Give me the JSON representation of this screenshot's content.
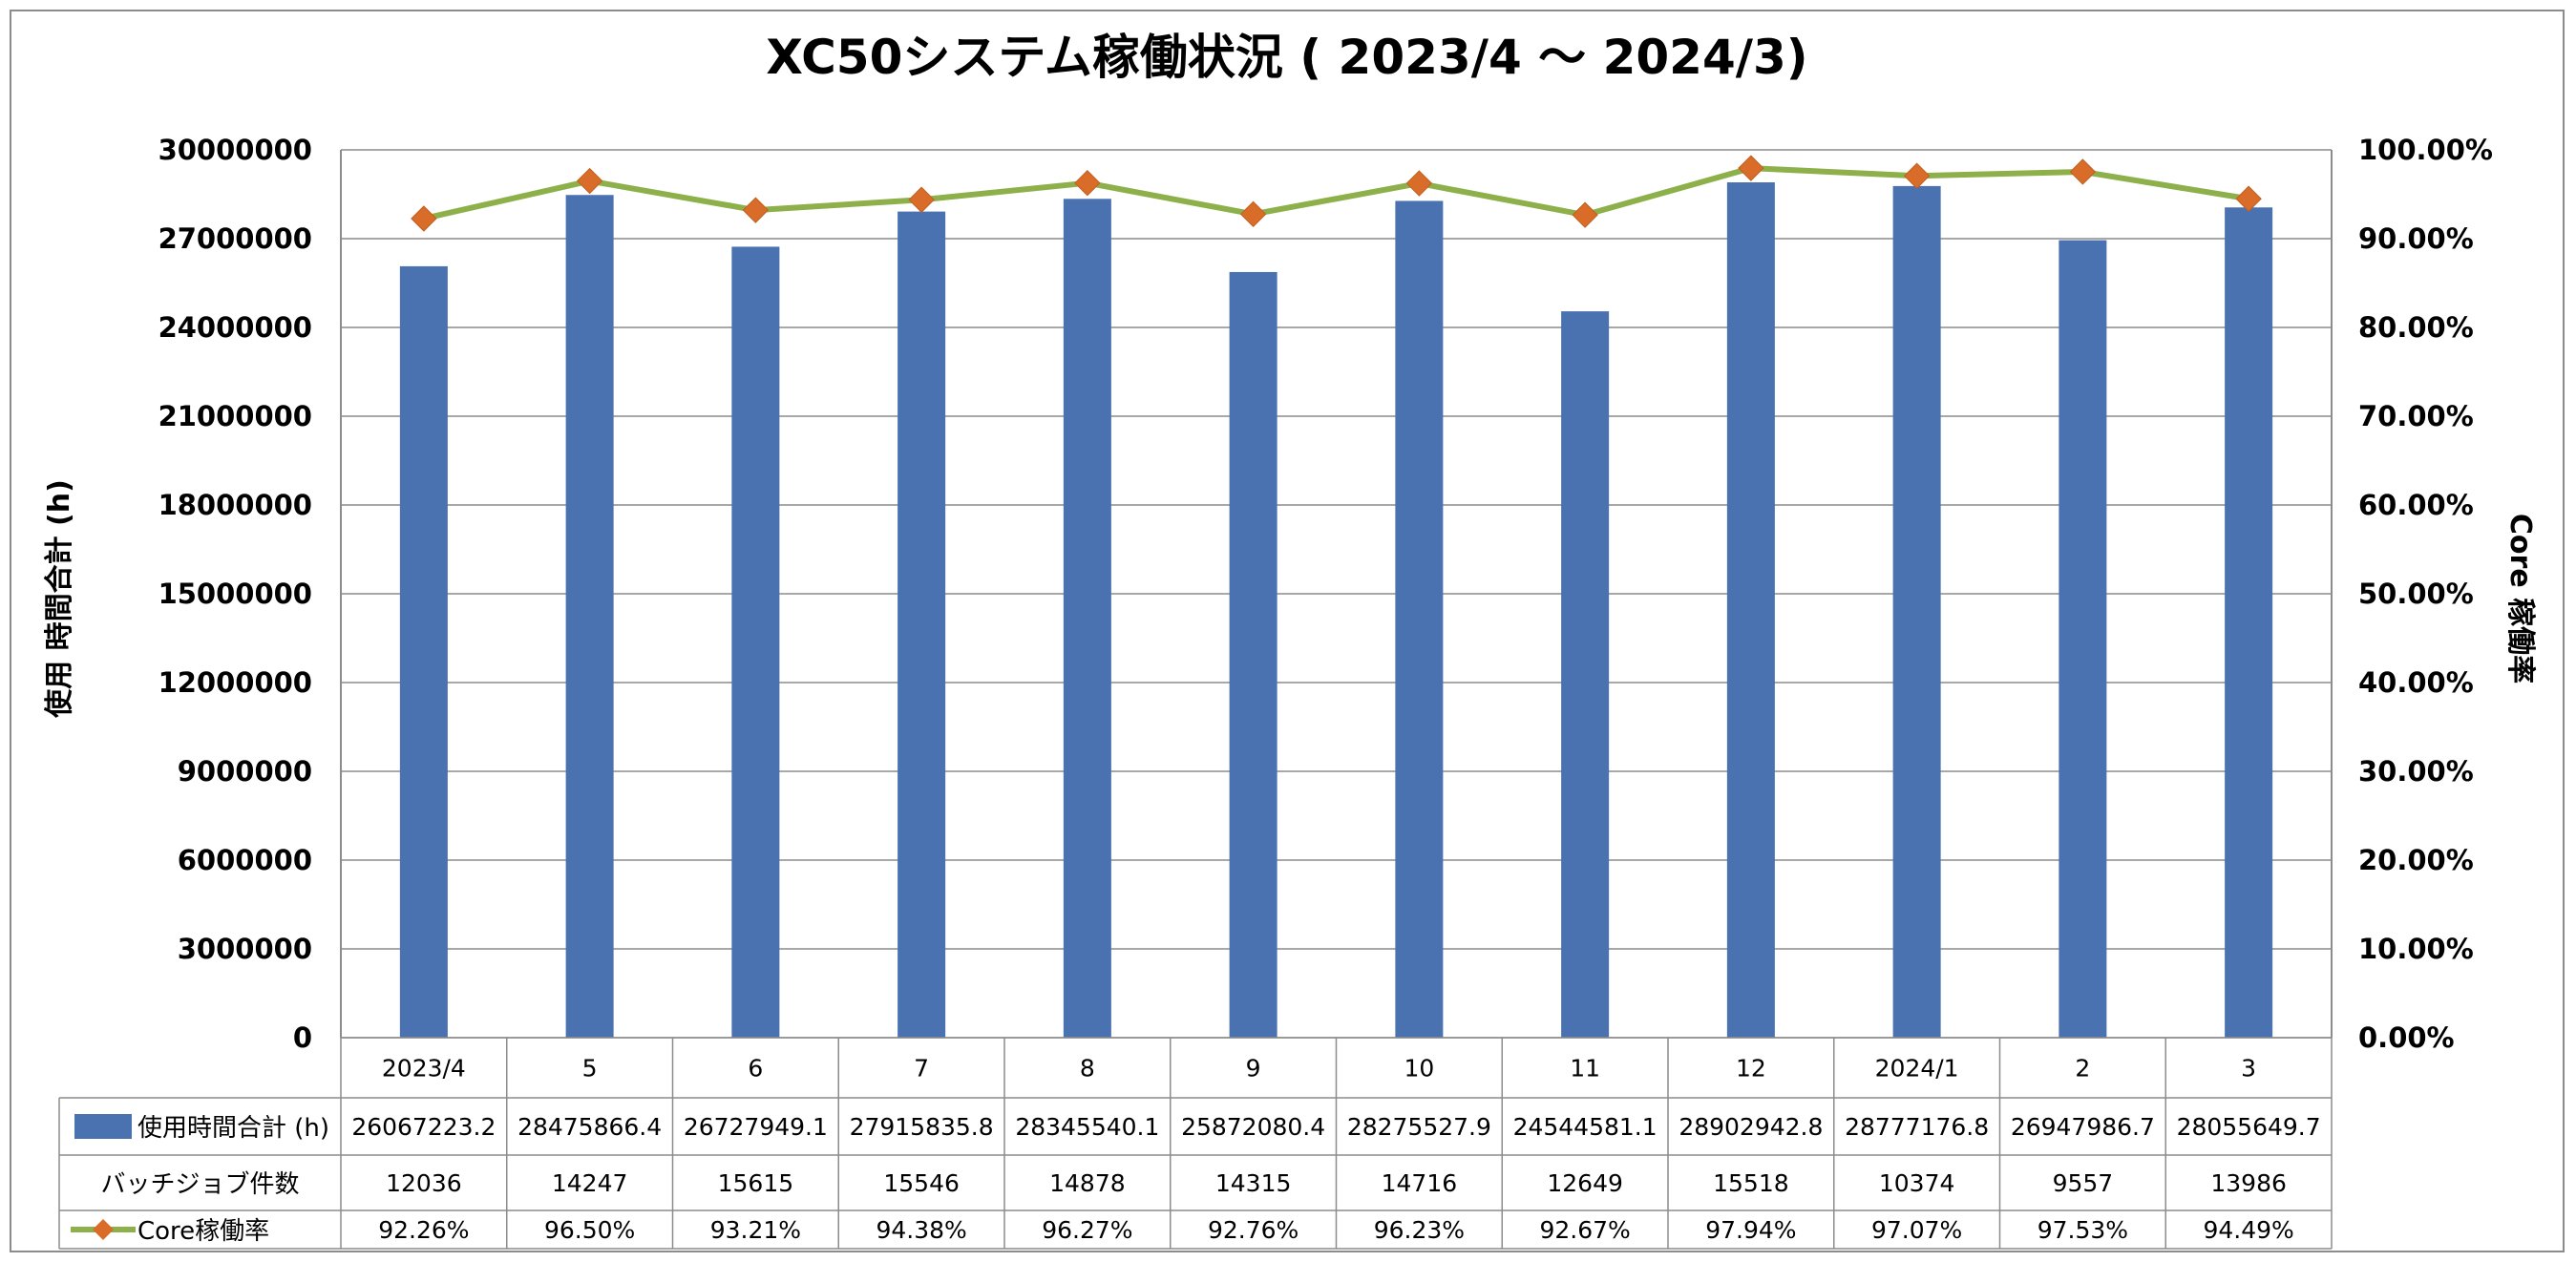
{
  "chart_data": {
    "type": "bar",
    "title": "XC50システム稼働状況 ( 2023/4 ～ 2024/3)",
    "categories": [
      "2023/4",
      "5",
      "6",
      "7",
      "8",
      "9",
      "10",
      "11",
      "12",
      "2024/1",
      "2",
      "3"
    ],
    "ylabel_left": "使用 時間合計 (h)",
    "ylabel_right": "Core 稼働率",
    "ylim_left": [
      0,
      30000000
    ],
    "yticks_left": [
      "0",
      "3000000",
      "6000000",
      "9000000",
      "12000000",
      "15000000",
      "18000000",
      "21000000",
      "24000000",
      "27000000",
      "30000000"
    ],
    "ylim_right": [
      0,
      100
    ],
    "yticks_right": [
      "0.00%",
      "10.00%",
      "20.00%",
      "30.00%",
      "40.00%",
      "50.00%",
      "60.00%",
      "70.00%",
      "80.00%",
      "90.00%",
      "100.00%"
    ],
    "grid": true,
    "series": [
      {
        "name": "使用時間合計 (h)",
        "type": "bar",
        "axis": "left",
        "color": "#4a72b0",
        "values": [
          26067223.2,
          28475866.4,
          26727949.1,
          27915835.8,
          28345540.1,
          25872080.4,
          28275527.9,
          24544581.1,
          28902942.8,
          28777176.8,
          26947986.7,
          28055649.7
        ],
        "labels": [
          "26067223.2",
          "28475866.4",
          "26727949.1",
          "27915835.8",
          "28345540.1",
          "25872080.4",
          "28275527.9",
          "24544581.1",
          "28902942.8",
          "28777176.8",
          "26947986.7",
          "28055649.7"
        ]
      },
      {
        "name": "バッチジョブ件数",
        "type": "table",
        "values": [
          12036,
          14247,
          15615,
          15546,
          14878,
          14315,
          14716,
          12649,
          15518,
          10374,
          9557,
          13986
        ],
        "labels": [
          "12036",
          "14247",
          "15615",
          "15546",
          "14878",
          "14315",
          "14716",
          "12649",
          "15518",
          "10374",
          "9557",
          "13986"
        ]
      },
      {
        "name": "Core稼働率",
        "type": "line",
        "axis": "right",
        "color": "#8db04a",
        "marker_color": "#d86c28",
        "values": [
          92.26,
          96.5,
          93.21,
          94.38,
          96.27,
          92.76,
          96.23,
          92.67,
          97.94,
          97.07,
          97.53,
          94.49
        ],
        "labels": [
          "92.26%",
          "96.50%",
          "93.21%",
          "94.38%",
          "96.27%",
          "92.76%",
          "96.23%",
          "92.67%",
          "97.94%",
          "97.07%",
          "97.53%",
          "94.49%"
        ]
      }
    ]
  }
}
